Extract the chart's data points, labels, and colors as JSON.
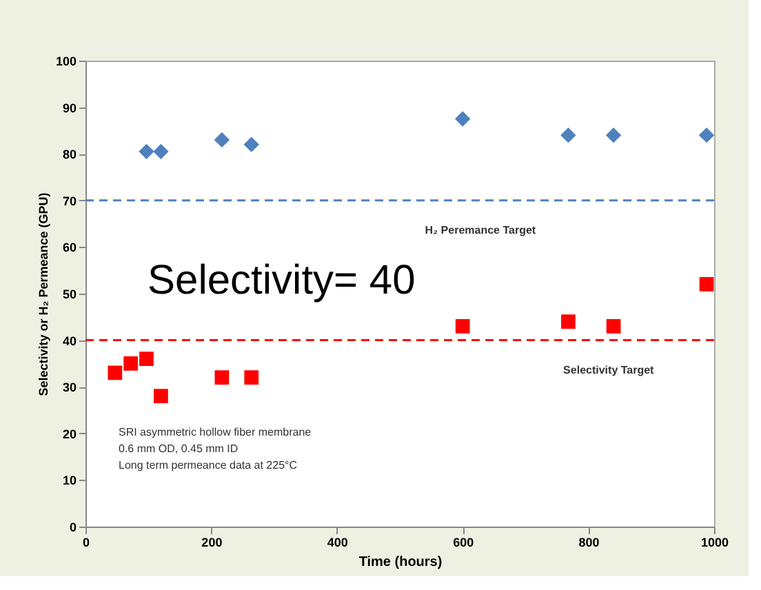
{
  "chart_data": {
    "type": "scatter",
    "xlabel": "Time (hours)",
    "ylabel": "Selectivity or H₂ Permeance (GPU)",
    "xlim": [
      0,
      1000
    ],
    "xticks": [
      0,
      200,
      400,
      600,
      800,
      1000
    ],
    "ylim": [
      0,
      100
    ],
    "yticks": [
      0,
      10,
      20,
      30,
      40,
      50,
      60,
      70,
      80,
      90,
      100
    ],
    "grid": false,
    "series": [
      {
        "color": "#4f81bd",
        "marker": "diamond",
        "x": [
          97,
          120,
          217,
          264,
          600,
          768,
          840,
          988
        ],
        "values": [
          80.5,
          80.5,
          83,
          82,
          87.5,
          84,
          84,
          84
        ]
      },
      {
        "color": "#ff0000",
        "marker": "square",
        "x": [
          47,
          72,
          97,
          120,
          217,
          264,
          600,
          768,
          840,
          988
        ],
        "values": [
          33,
          35,
          36,
          28,
          32,
          32,
          43,
          44,
          43,
          52
        ]
      }
    ],
    "ref_lines": [
      {
        "axis": "y",
        "value": 70,
        "label": "H₂ Peremance Target",
        "color": "#4f81bd",
        "line_style": "dashed"
      },
      {
        "axis": "y",
        "value": 40,
        "label": "Selectivity Target",
        "color": "#ff0000",
        "line_style": "dashed"
      }
    ],
    "annotations": [
      "Selectivity= 40",
      "SRI asymmetric hollow fiber membrane",
      "0.6 mm OD, 0.45 mm ID",
      "Long term permeance data at 225°C"
    ]
  }
}
